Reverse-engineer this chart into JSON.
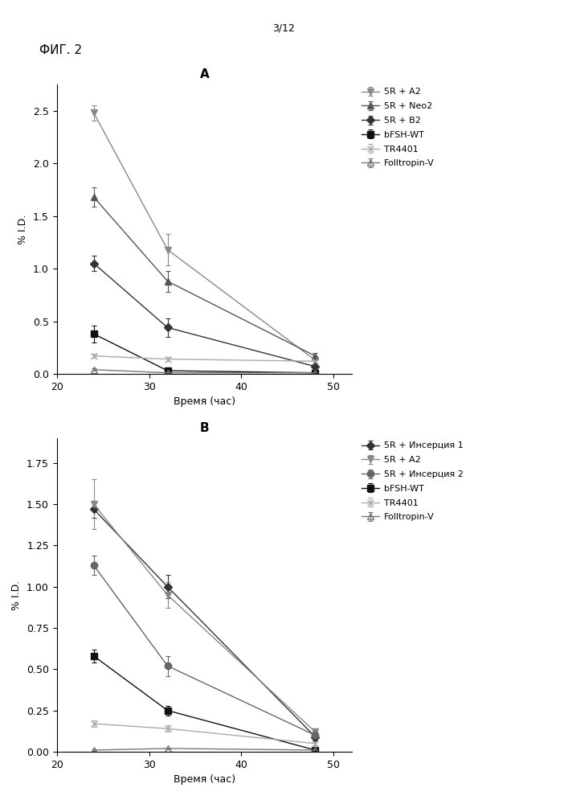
{
  "page_label": "3/12",
  "fig_label": "ФИГ. 2",
  "xlabel": "Время (час)",
  "ylabel": "% I.D.",
  "x_ticks": [
    20,
    30,
    40,
    50
  ],
  "x_lim": [
    20,
    52
  ],
  "panel_A": {
    "title": "A",
    "y_lim": [
      0,
      2.75
    ],
    "y_ticks": [
      0.0,
      0.5,
      1.0,
      1.5,
      2.0,
      2.5
    ],
    "series": [
      {
        "label": "5R + A2",
        "color": "#888888",
        "marker": "v",
        "markersize": 6,
        "fillstyle": "full",
        "x": [
          24,
          32,
          48
        ],
        "y": [
          2.48,
          1.18,
          0.13
        ],
        "yerr": [
          0.07,
          0.15,
          0.03
        ]
      },
      {
        "label": "5R + Neo2",
        "color": "#555555",
        "marker": "^",
        "markersize": 6,
        "fillstyle": "full",
        "x": [
          24,
          32,
          48
        ],
        "y": [
          1.68,
          0.88,
          0.17
        ],
        "yerr": [
          0.09,
          0.1,
          0.03
        ]
      },
      {
        "label": "5R + B2",
        "color": "#333333",
        "marker": "D",
        "markersize": 5,
        "fillstyle": "full",
        "x": [
          24,
          32,
          48
        ],
        "y": [
          1.05,
          0.44,
          0.07
        ],
        "yerr": [
          0.07,
          0.09,
          0.01
        ]
      },
      {
        "label": "bFSH-WT",
        "color": "#111111",
        "marker": "s",
        "markersize": 6,
        "fillstyle": "full",
        "x": [
          24,
          32,
          48
        ],
        "y": [
          0.38,
          0.03,
          0.01
        ],
        "yerr": [
          0.08,
          0.01,
          0.005
        ]
      },
      {
        "label": "TR4401",
        "color": "#aaaaaa",
        "marker": "x",
        "markersize": 6,
        "fillstyle": "full",
        "x": [
          24,
          32,
          48
        ],
        "y": [
          0.17,
          0.14,
          0.12
        ],
        "yerr": [
          0.02,
          0.02,
          0.02
        ]
      },
      {
        "label": "Folltropin-V",
        "color": "#777777",
        "marker": "^",
        "markersize": 6,
        "fillstyle": "none",
        "x": [
          24,
          32,
          48
        ],
        "y": [
          0.04,
          0.01,
          0.01
        ],
        "yerr": [
          0.01,
          0.005,
          0.005
        ]
      }
    ]
  },
  "panel_B": {
    "title": "B",
    "y_lim": [
      0,
      1.9
    ],
    "y_ticks": [
      0.0,
      0.25,
      0.5,
      0.75,
      1.0,
      1.25,
      1.5,
      1.75
    ],
    "series": [
      {
        "label": "5R + Инсерция 1",
        "color": "#333333",
        "marker": "D",
        "markersize": 5,
        "fillstyle": "full",
        "x": [
          24,
          32,
          48
        ],
        "y": [
          1.47,
          1.0,
          0.09
        ],
        "yerr": [
          0.05,
          0.07,
          0.02
        ]
      },
      {
        "label": "5R + A2",
        "color": "#888888",
        "marker": "v",
        "markersize": 6,
        "fillstyle": "full",
        "x": [
          24,
          32,
          48
        ],
        "y": [
          1.5,
          0.95,
          0.12
        ],
        "yerr": [
          0.15,
          0.08,
          0.02
        ]
      },
      {
        "label": "5R + Инсерция 2",
        "color": "#666666",
        "marker": "o",
        "markersize": 6,
        "fillstyle": "full",
        "x": [
          24,
          32,
          48
        ],
        "y": [
          1.13,
          0.52,
          0.1
        ],
        "yerr": [
          0.06,
          0.06,
          0.02
        ]
      },
      {
        "label": "bFSH-WT",
        "color": "#111111",
        "marker": "s",
        "markersize": 6,
        "fillstyle": "full",
        "x": [
          24,
          32,
          48
        ],
        "y": [
          0.58,
          0.25,
          0.01
        ],
        "yerr": [
          0.04,
          0.03,
          0.005
        ]
      },
      {
        "label": "TR4401",
        "color": "#aaaaaa",
        "marker": "x",
        "markersize": 6,
        "fillstyle": "full",
        "x": [
          24,
          32,
          48
        ],
        "y": [
          0.17,
          0.14,
          0.05
        ],
        "yerr": [
          0.02,
          0.02,
          0.01
        ]
      },
      {
        "label": "Folltropin-V",
        "color": "#777777",
        "marker": "^",
        "markersize": 6,
        "fillstyle": "none",
        "x": [
          24,
          32,
          48
        ],
        "y": [
          0.01,
          0.02,
          0.01
        ],
        "yerr": [
          0.005,
          0.005,
          0.005
        ]
      }
    ]
  },
  "background_color": "#ffffff",
  "font_color": "#000000",
  "font_size": 9,
  "title_font_size": 11
}
